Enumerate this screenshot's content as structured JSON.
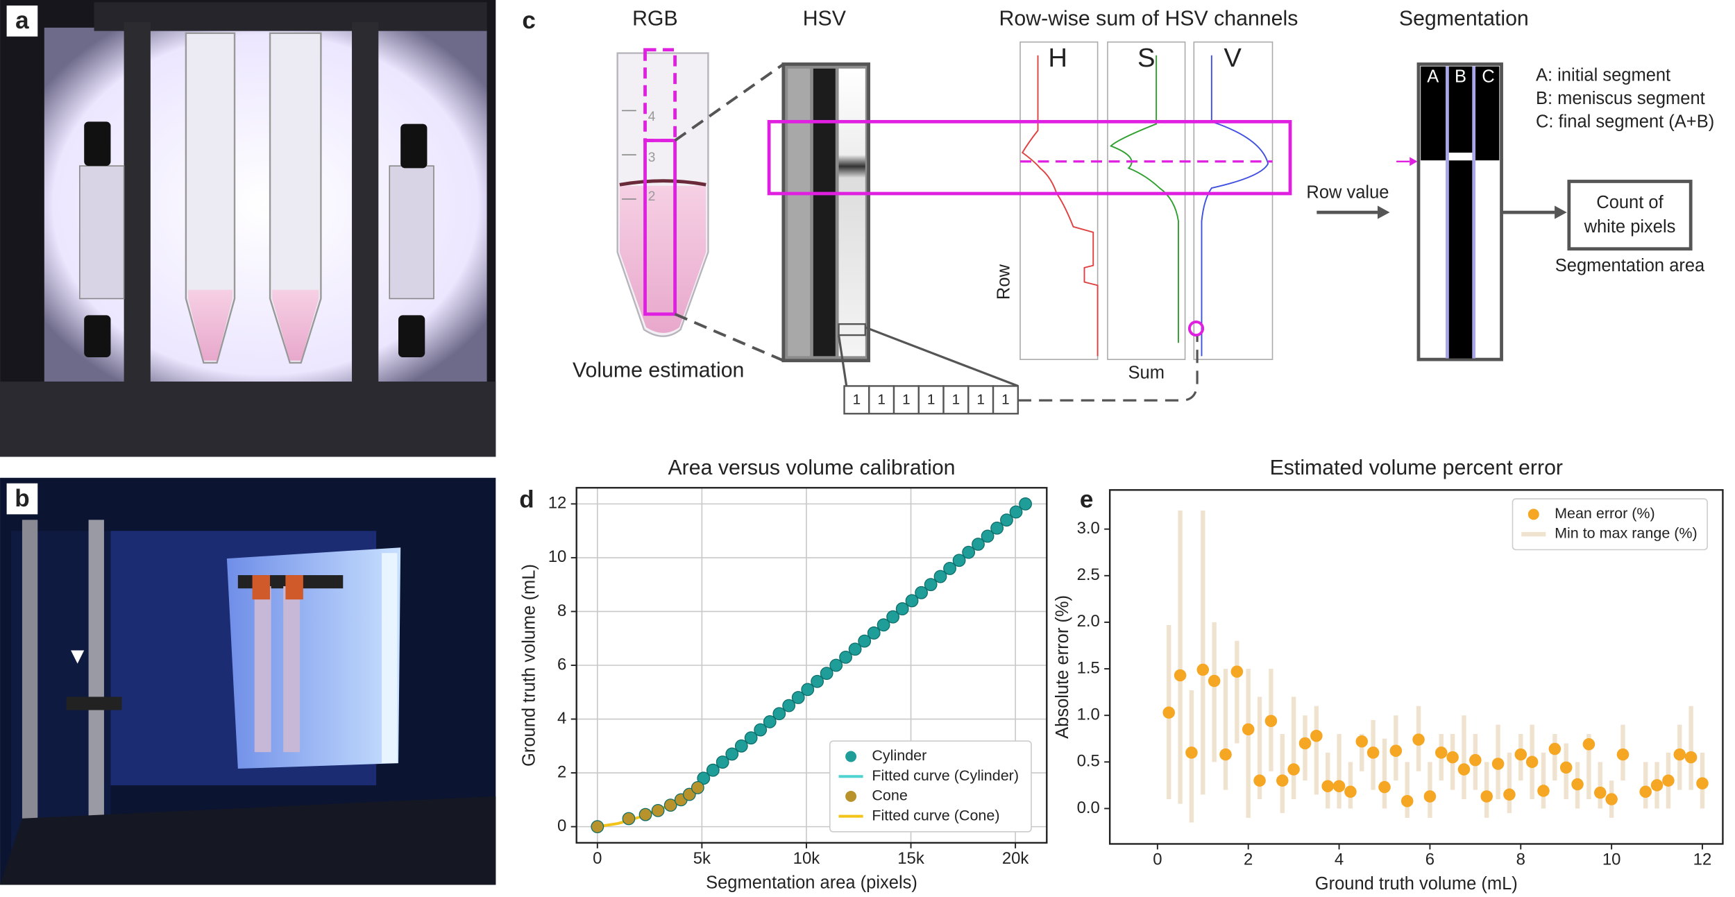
{
  "figure": {
    "panel_labels": [
      "a",
      "b",
      "c",
      "d",
      "e"
    ],
    "c": {
      "rgb": "RGB",
      "hsv": "HSV",
      "rowwise": "Row-wise sum of HSV channels",
      "channels": [
        "H",
        "S",
        "V"
      ],
      "segmentation": "Segmentation",
      "segments": [
        "A",
        "B",
        "C"
      ],
      "legend": [
        "A: initial segment",
        "B: meniscus segment",
        "C: final segment (A+B)"
      ],
      "row_value": "Row value",
      "count": [
        "Count of",
        "white pixels"
      ],
      "segmentation_area": "Segmentation area",
      "row": "Row",
      "sum": "Sum",
      "volume_estimation": "Volume estimation",
      "pixels": [
        1,
        1,
        1,
        1,
        1,
        1,
        1
      ],
      "tube_marks": [
        "4",
        "3",
        "2"
      ]
    }
  },
  "chart_data": [
    {
      "type": "scatter",
      "title": "Area versus volume calibration",
      "x_label": "Segmentation area (pixels)",
      "y_label": "Ground truth volume (mL)",
      "xlim": [
        -1000,
        21500
      ],
      "ylim": [
        -0.6,
        12.6
      ],
      "xticks": [
        0,
        {
          "value": 5000,
          "label": "5k"
        },
        {
          "value": 10000,
          "label": "10k"
        },
        {
          "value": 15000,
          "label": "15k"
        },
        {
          "value": 20000,
          "label": "20k"
        }
      ],
      "yticks": [
        0,
        2,
        4,
        6,
        8,
        10,
        12
      ],
      "grid": true,
      "legend": "lower right",
      "series": [
        {
          "name": "Cylinder",
          "type": "scatter",
          "color": "#1f9e99",
          "x": [
            5080,
            5530,
            5990,
            6440,
            6890,
            7350,
            7800,
            8250,
            8700,
            9160,
            9610,
            10060,
            10520,
            10970,
            11420,
            11880,
            12330,
            12780,
            13230,
            13690,
            14140,
            14590,
            15050,
            15500,
            15950,
            16410,
            16860,
            17310,
            17760,
            18220,
            18670,
            19120,
            19580,
            20030,
            20480
          ],
          "values": [
            1.8,
            2.1,
            2.4,
            2.7,
            3.0,
            3.3,
            3.6,
            3.9,
            4.2,
            4.5,
            4.8,
            5.1,
            5.4,
            5.7,
            6.0,
            6.3,
            6.6,
            6.9,
            7.2,
            7.5,
            7.8,
            8.1,
            8.4,
            8.7,
            9.0,
            9.3,
            9.6,
            9.9,
            10.2,
            10.5,
            10.8,
            11.1,
            11.4,
            11.7,
            12.0
          ]
        },
        {
          "name": "Fitted curve (Cylinder)",
          "type": "line",
          "color": "#4fd3d0",
          "x": [
            4800,
            20480
          ],
          "values": [
            1.6,
            12
          ]
        },
        {
          "name": "Cone",
          "type": "scatter",
          "color": "#b8922a",
          "x": [
            0,
            1500,
            2300,
            2900,
            3500,
            4000,
            4400,
            4800
          ],
          "values": [
            0,
            0.3,
            0.45,
            0.6,
            0.8,
            1.0,
            1.2,
            1.45
          ]
        },
        {
          "name": "Fitted curve (Cone)",
          "type": "line",
          "color": "#f2c318",
          "x": [
            0,
            1000,
            2000,
            3000,
            4000,
            4800
          ],
          "values": [
            0,
            0.12,
            0.35,
            0.65,
            1.0,
            1.45
          ]
        }
      ]
    },
    {
      "type": "scatter",
      "title": "Estimated volume percent error",
      "x_label": "Ground truth volume (mL)",
      "y_label": "Absolute error (%)",
      "xlim": [
        -1.05,
        12.45
      ],
      "ylim": [
        -0.38,
        3.42
      ],
      "xticks": [
        0,
        2,
        4,
        6,
        8,
        10,
        12
      ],
      "yticks": [
        {
          "value": 0,
          "label": "0.0"
        },
        {
          "value": 0.5,
          "label": "0.5"
        },
        {
          "value": 1,
          "label": "1.0"
        },
        {
          "value": 1.5,
          "label": "1.5"
        },
        {
          "value": 2,
          "label": "2.0"
        },
        {
          "value": 2.5,
          "label": "2.5"
        },
        {
          "value": 3,
          "label": "3.0"
        }
      ],
      "grid": false,
      "legend": "upper right",
      "x": [
        0.25,
        0.5,
        0.75,
        1.0,
        1.25,
        1.5,
        1.75,
        2.0,
        2.25,
        2.5,
        2.75,
        3.0,
        3.25,
        3.5,
        3.75,
        4.0,
        4.25,
        4.5,
        4.75,
        5.0,
        5.25,
        5.5,
        5.75,
        6.0,
        6.25,
        6.5,
        6.75,
        7.0,
        7.25,
        7.5,
        7.75,
        8.0,
        8.25,
        8.5,
        8.75,
        9.0,
        9.25,
        9.5,
        9.75,
        10.0,
        10.25,
        10.75,
        11.0,
        11.25,
        11.5,
        11.75,
        12.0
      ],
      "series": [
        {
          "name": "Mean error (%)",
          "type": "scatter",
          "color": "#f5a623",
          "values": [
            1.03,
            1.43,
            0.6,
            1.49,
            1.37,
            0.58,
            1.47,
            0.85,
            0.3,
            0.94,
            0.3,
            0.42,
            0.7,
            0.78,
            0.24,
            0.24,
            0.18,
            0.72,
            0.6,
            0.23,
            0.62,
            0.08,
            0.74,
            0.13,
            0.6,
            0.55,
            0.42,
            0.52,
            0.13,
            0.48,
            0.15,
            0.58,
            0.5,
            0.19,
            0.64,
            0.44,
            0.26,
            0.69,
            0.17,
            0.1,
            0.58,
            0.18,
            0.25,
            0.3,
            0.58,
            0.55,
            0.27
          ]
        },
        {
          "name": "Min to max range (%)",
          "type": "range",
          "color": "#efe3cf",
          "low": [
            0.1,
            0.05,
            -0.15,
            0.15,
            0.5,
            0.2,
            0.7,
            -0.1,
            0.1,
            0.4,
            -0.05,
            0.1,
            0.3,
            0.15,
            0.0,
            0.0,
            0.0,
            0.4,
            0.2,
            0.0,
            0.3,
            -0.1,
            0.4,
            -0.1,
            0.3,
            0.2,
            0.1,
            0.2,
            -0.1,
            0.1,
            -0.05,
            0.3,
            0.1,
            0.0,
            0.3,
            0.1,
            0.0,
            0.1,
            0.0,
            -0.1,
            0.3,
            0.0,
            0.0,
            0.0,
            0.2,
            0.2,
            0.0
          ],
          "high": [
            1.97,
            3.2,
            1.27,
            3.2,
            2.0,
            1.5,
            1.8,
            1.5,
            1.2,
            1.5,
            0.8,
            1.2,
            1.0,
            1.1,
            0.6,
            0.8,
            0.5,
            0.8,
            0.95,
            0.75,
            1.0,
            0.5,
            1.1,
            0.5,
            0.8,
            0.8,
            1.0,
            0.8,
            0.5,
            0.9,
            0.6,
            0.8,
            0.9,
            0.6,
            0.8,
            0.7,
            0.5,
            0.8,
            0.5,
            0.3,
            0.9,
            0.5,
            0.5,
            0.6,
            0.9,
            1.1,
            0.6
          ]
        }
      ]
    }
  ]
}
